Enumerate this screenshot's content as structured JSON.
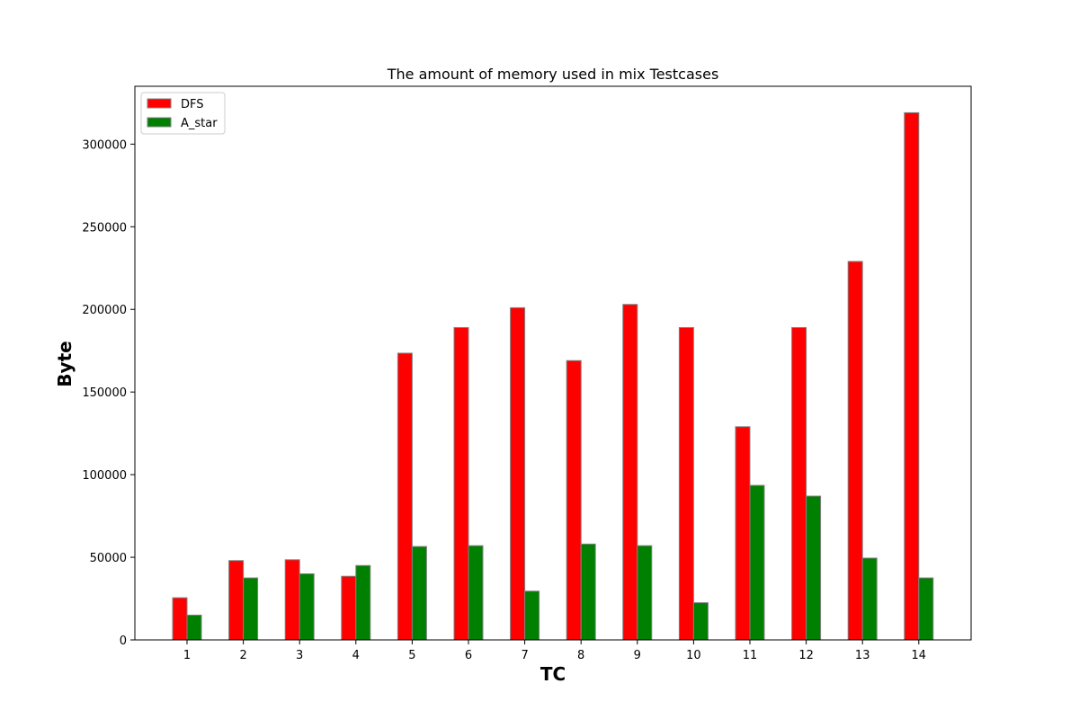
{
  "chart_data": {
    "type": "bar",
    "title": "The amount of memory used in mix Testcases",
    "xlabel": "TC",
    "ylabel": "Byte",
    "categories": [
      "1",
      "2",
      "3",
      "4",
      "5",
      "6",
      "7",
      "8",
      "9",
      "10",
      "11",
      "12",
      "13",
      "14"
    ],
    "series": [
      {
        "name": "DFS",
        "color": "#ff0000",
        "values": [
          25500,
          48000,
          48500,
          38500,
          173500,
          189000,
          201000,
          169000,
          203000,
          189000,
          129000,
          189000,
          229000,
          319000
        ]
      },
      {
        "name": "A_star",
        "color": "#008000",
        "values": [
          15000,
          37500,
          40000,
          45000,
          56500,
          57000,
          29500,
          58000,
          57000,
          22500,
          93500,
          87000,
          49500,
          37500
        ]
      }
    ],
    "ylim": [
      0,
      335000
    ],
    "yticks": [
      0,
      50000,
      100000,
      150000,
      200000,
      250000,
      300000
    ],
    "grid": false,
    "legend": "top-left"
  }
}
